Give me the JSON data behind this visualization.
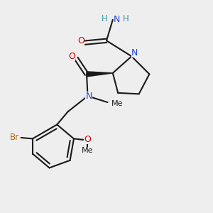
{
  "bg_color": "#eeeeee",
  "bond_color": "#1a1a1a",
  "N_color": "#2244dd",
  "O_color": "#cc0000",
  "Br_color": "#bb6600",
  "H_color": "#3399aa",
  "figsize": [
    3.0,
    3.0
  ],
  "dpi": 100,
  "xlim": [
    0,
    10
  ],
  "ylim": [
    0,
    10
  ]
}
